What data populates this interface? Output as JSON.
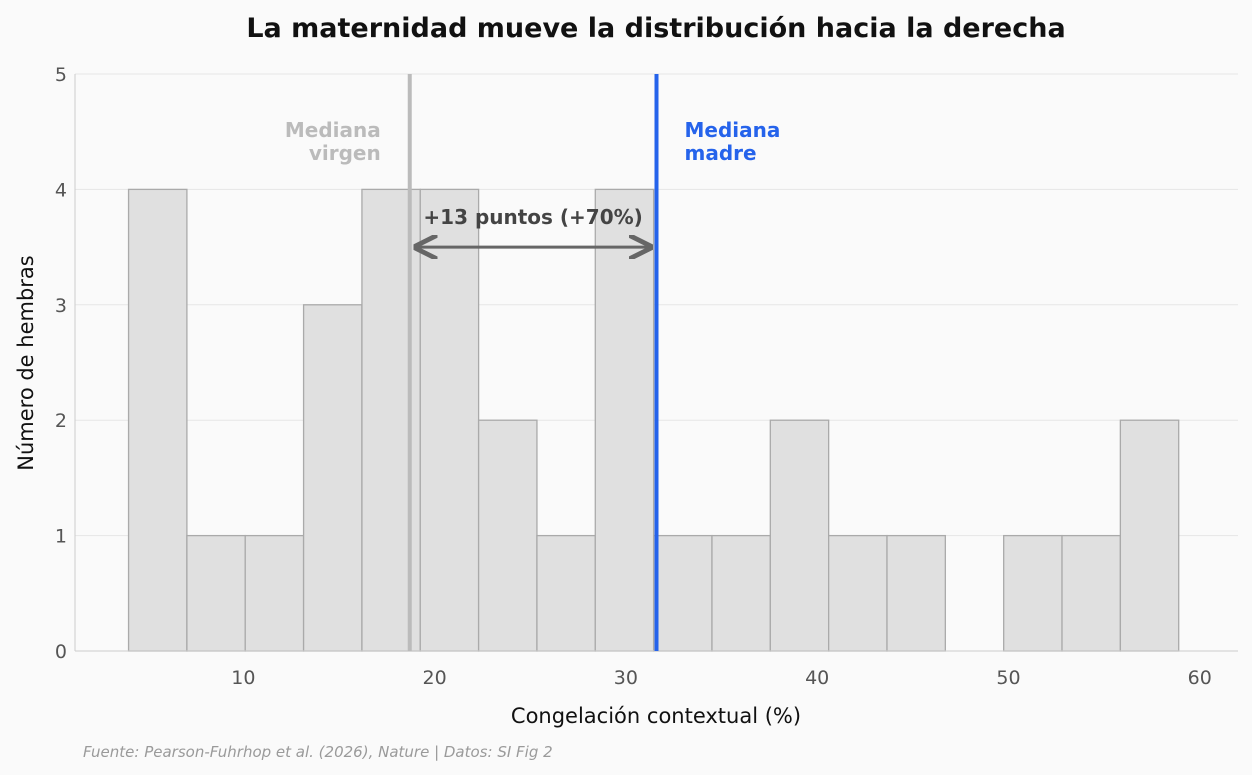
{
  "chart_data": {
    "type": "histogram",
    "title": "La maternidad mueve la distribución hacia la derecha",
    "xlabel": "Congelación contextual (%)",
    "ylabel": "Número de hembras",
    "xlim": [
      1.2,
      62
    ],
    "ylim": [
      0,
      5
    ],
    "xticks": [
      10,
      20,
      30,
      40,
      50,
      60
    ],
    "yticks": [
      0,
      1,
      2,
      3,
      4,
      5
    ],
    "grid": "horizontal",
    "bin_edges": [
      4.0,
      7.05,
      10.1,
      13.15,
      16.2,
      19.25,
      22.3,
      25.35,
      28.4,
      31.45,
      34.5,
      37.55,
      40.6,
      43.65,
      46.7,
      49.75,
      52.8,
      55.85,
      58.9
    ],
    "counts": [
      4,
      1,
      1,
      3,
      4,
      4,
      2,
      1,
      4,
      1,
      1,
      2,
      1,
      1,
      0,
      1,
      1,
      2
    ],
    "bar_color": "#e0e0e0",
    "bar_edge_color": "#aaaaaa",
    "median_virgin": {
      "value": 18.7,
      "label_line1": "Mediana",
      "label_line2": "virgen",
      "color": "#bbbbbb"
    },
    "median_mother": {
      "value": 31.6,
      "label_line1": "Mediana",
      "label_line2": "madre",
      "color": "#2563eb"
    },
    "difference_annotation": {
      "text": "+13 puntos (+70%)",
      "y": 3.5,
      "color": "#666666"
    },
    "source": "Fuente: Pearson-Fuhrhop et al. (2026), Nature | Datos: SI Fig 2"
  }
}
